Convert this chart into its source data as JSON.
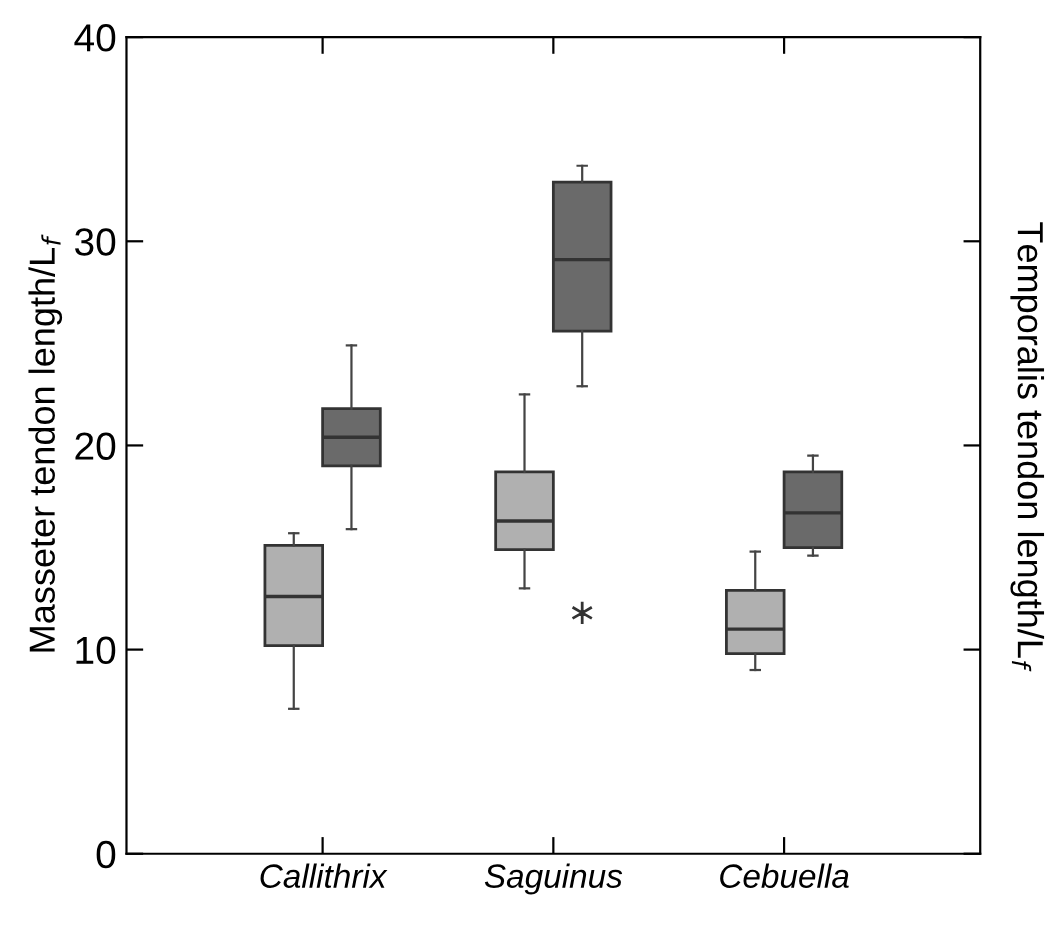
{
  "chart_data": {
    "type": "box",
    "ylabel": "Masseter tendon length/L$_{f}$",
    "y2label": "Temporalis tendon length/L$_{f}$",
    "categories": [
      "Callithrix",
      "Saguinus",
      "Cebuella"
    ],
    "ylim": [
      0,
      40
    ],
    "yticks": [
      0,
      10,
      20,
      30,
      40
    ],
    "grid": false,
    "legend": false,
    "series": [
      {
        "color": "#b0b0b0",
        "boxes": [
          {
            "low": 7.1,
            "q1": 10.2,
            "median": 12.6,
            "q3": 15.1,
            "high": 15.7
          },
          {
            "low": 13.0,
            "q1": 14.9,
            "median": 16.3,
            "q3": 18.7,
            "high": 22.5
          },
          {
            "low": 9.0,
            "q1": 9.8,
            "median": 11.0,
            "q3": 12.9,
            "high": 14.8
          }
        ]
      },
      {
        "color": "#6a6a6a",
        "boxes": [
          {
            "low": 15.9,
            "q1": 19.0,
            "median": 20.4,
            "q3": 21.8,
            "high": 24.9
          },
          {
            "low": 22.9,
            "q1": 25.6,
            "median": 29.1,
            "q3": 32.9,
            "high": 33.7,
            "outliers": [
              11.8
            ]
          },
          {
            "low": 14.6,
            "q1": 15.0,
            "median": 16.7,
            "q3": 18.7,
            "high": 19.5
          }
        ]
      }
    ]
  }
}
